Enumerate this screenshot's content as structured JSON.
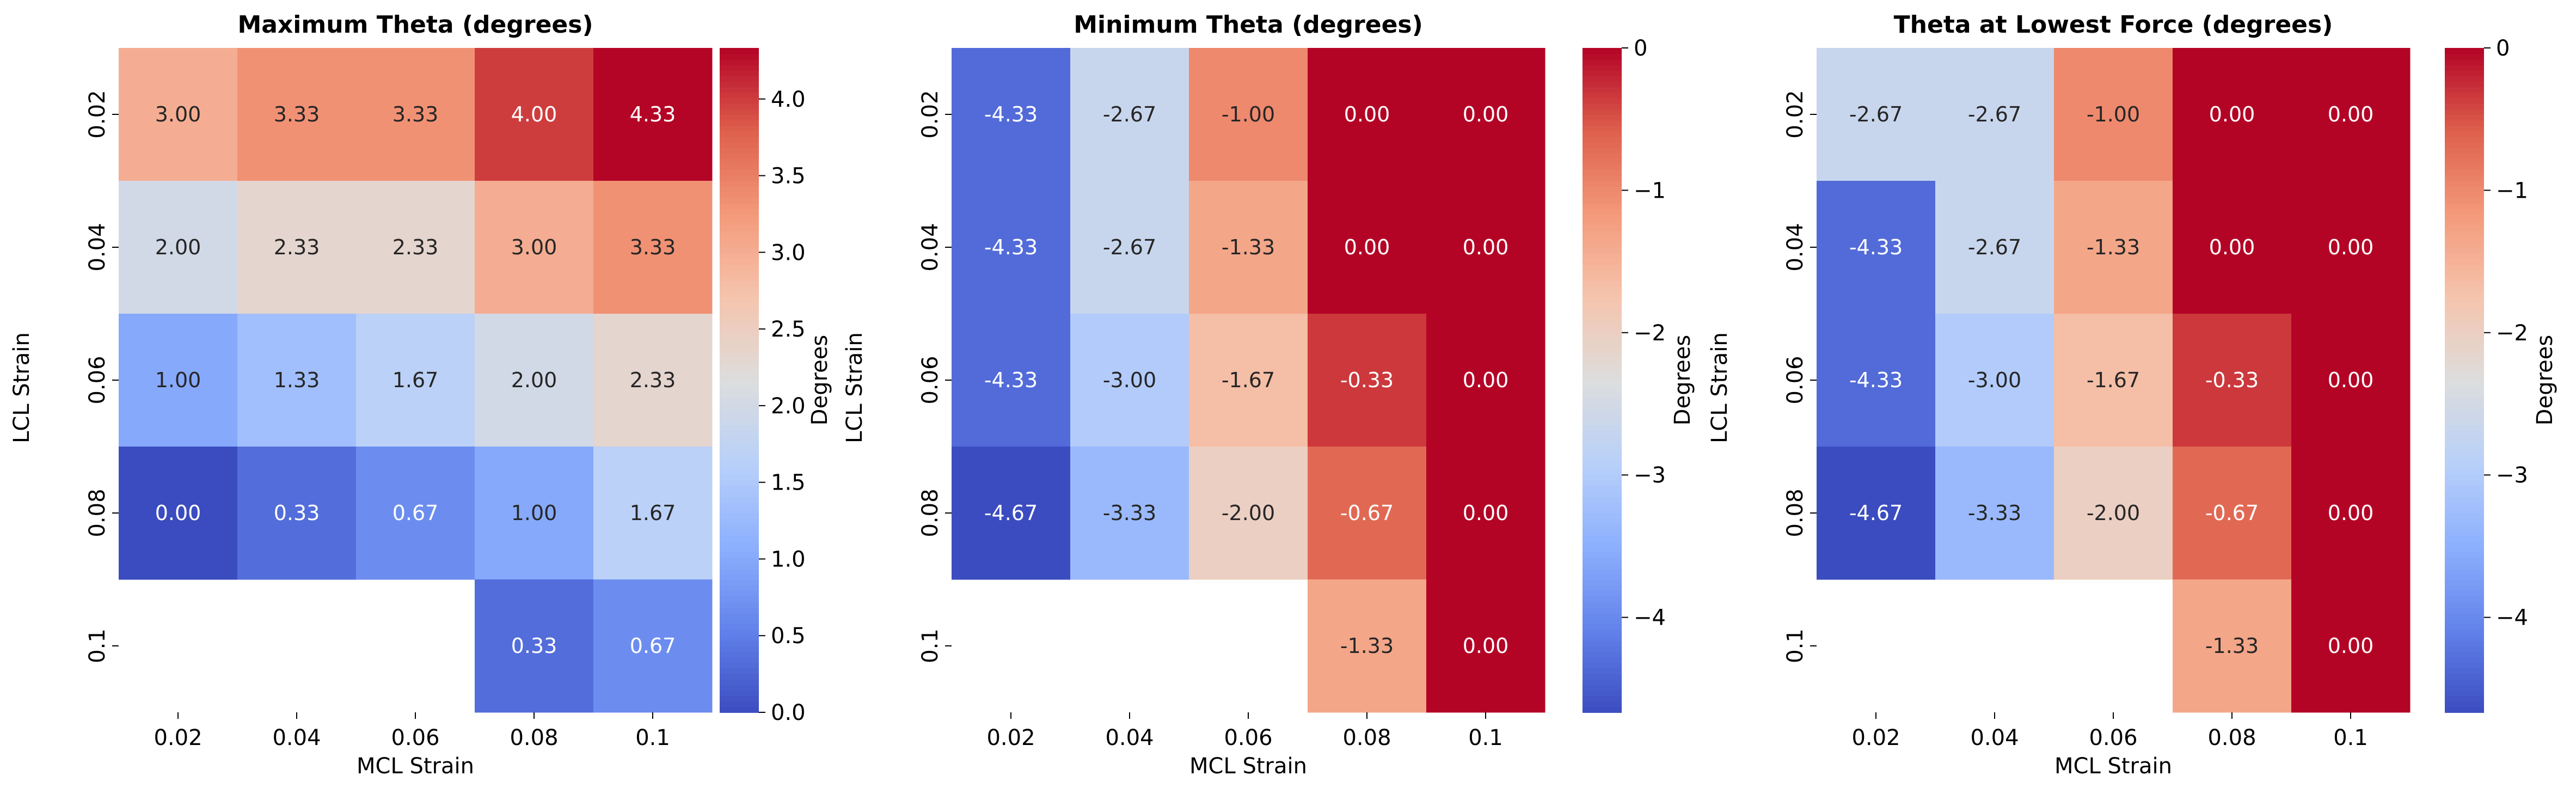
{
  "chart_data": [
    {
      "type": "heatmap",
      "title": "Maximum Theta (degrees)",
      "xlabel": "MCL Strain",
      "ylabel": "LCL Strain",
      "x_categories": [
        "0.02",
        "0.04",
        "0.06",
        "0.08",
        "0.1"
      ],
      "y_categories": [
        "0.02",
        "0.04",
        "0.06",
        "0.08",
        "0.1"
      ],
      "values": [
        [
          3.0,
          3.33,
          3.33,
          4.0,
          4.33
        ],
        [
          2.0,
          2.33,
          2.33,
          3.0,
          3.33
        ],
        [
          1.0,
          1.33,
          1.67,
          2.0,
          2.33
        ],
        [
          0.0,
          0.33,
          0.67,
          1.0,
          1.67
        ],
        [
          null,
          null,
          null,
          0.33,
          0.67
        ]
      ],
      "colorbar": {
        "label": "Degrees",
        "min": 0.0,
        "max": 4.333,
        "ticks": [
          0.0,
          0.5,
          1.0,
          1.5,
          2.0,
          2.5,
          3.0,
          3.5,
          4.0
        ],
        "tick_labels": [
          "0.0",
          "0.5",
          "1.0",
          "1.5",
          "2.0",
          "2.5",
          "3.0",
          "3.5",
          "4.0"
        ]
      },
      "colormap": "coolwarm"
    },
    {
      "type": "heatmap",
      "title": "Minimum Theta (degrees)",
      "xlabel": "MCL Strain",
      "ylabel": "LCL Strain",
      "x_categories": [
        "0.02",
        "0.04",
        "0.06",
        "0.08",
        "0.1"
      ],
      "y_categories": [
        "0.02",
        "0.04",
        "0.06",
        "0.08",
        "0.1"
      ],
      "values": [
        [
          -4.33,
          -2.67,
          -1.0,
          0.0,
          0.0
        ],
        [
          -4.33,
          -2.67,
          -1.33,
          0.0,
          0.0
        ],
        [
          -4.33,
          -3.0,
          -1.67,
          -0.33,
          0.0
        ],
        [
          -4.67,
          -3.33,
          -2.0,
          -0.67,
          0.0
        ],
        [
          null,
          null,
          null,
          -1.33,
          0.0
        ]
      ],
      "colorbar": {
        "label": "Degrees",
        "min": -4.667,
        "max": 0.0,
        "ticks": [
          -4,
          -3,
          -2,
          -1,
          0
        ],
        "tick_labels": [
          "−4",
          "−3",
          "−2",
          "−1",
          "0"
        ]
      },
      "colormap": "coolwarm"
    },
    {
      "type": "heatmap",
      "title": "Theta at Lowest Force (degrees)",
      "xlabel": "MCL Strain",
      "ylabel": "LCL Strain",
      "x_categories": [
        "0.02",
        "0.04",
        "0.06",
        "0.08",
        "0.1"
      ],
      "y_categories": [
        "0.02",
        "0.04",
        "0.06",
        "0.08",
        "0.1"
      ],
      "values": [
        [
          -2.67,
          -2.67,
          -1.0,
          0.0,
          0.0
        ],
        [
          -4.33,
          -2.67,
          -1.33,
          0.0,
          0.0
        ],
        [
          -4.33,
          -3.0,
          -1.67,
          -0.33,
          0.0
        ],
        [
          -4.67,
          -3.33,
          -2.0,
          -0.67,
          0.0
        ],
        [
          null,
          null,
          null,
          -1.33,
          0.0
        ]
      ],
      "colorbar": {
        "label": "Degrees",
        "min": -4.667,
        "max": 0.0,
        "ticks": [
          -4,
          -3,
          -2,
          -1,
          0
        ],
        "tick_labels": [
          "−4",
          "−3",
          "−2",
          "−1",
          "0"
        ]
      },
      "colormap": "coolwarm"
    }
  ]
}
